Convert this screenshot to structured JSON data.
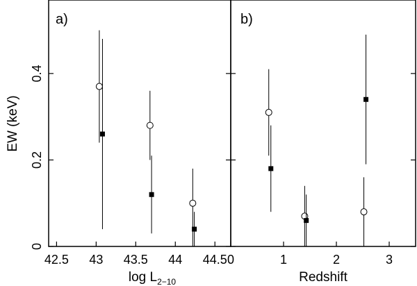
{
  "chart_data": [
    {
      "type": "scatter",
      "panel_label": "a)",
      "xlabel_main": "log L",
      "xlabel_sub": "2−10",
      "ylabel": "EW (keV)",
      "xlim": [
        42.4,
        44.7
      ],
      "ylim": [
        0,
        0.57
      ],
      "xticks": [
        42.5,
        43,
        43.5,
        44,
        44.5
      ],
      "xtick_labels": [
        "42.5",
        "43",
        "43.5",
        "44",
        "44.5"
      ],
      "yticks": [
        0,
        0.2,
        0.4
      ],
      "ytick_labels": [
        "0",
        "0.2",
        "0.4"
      ],
      "series": [
        {
          "marker": "open-circle",
          "points": [
            {
              "x": 43.04,
              "y": 0.37,
              "ylo": 0.24,
              "yhi": 0.5
            },
            {
              "x": 43.68,
              "y": 0.28,
              "ylo": 0.2,
              "yhi": 0.36
            },
            {
              "x": 44.22,
              "y": 0.1,
              "ylo": 0.0,
              "yhi": 0.18
            }
          ]
        },
        {
          "marker": "filled-square",
          "points": [
            {
              "x": 43.08,
              "y": 0.26,
              "ylo": 0.04,
              "yhi": 0.48
            },
            {
              "x": 43.7,
              "y": 0.12,
              "ylo": 0.03,
              "yhi": 0.21
            },
            {
              "x": 44.24,
              "y": 0.04,
              "ylo": 0.0,
              "yhi": 0.08
            }
          ]
        }
      ]
    },
    {
      "type": "scatter",
      "panel_label": "b)",
      "xlabel_main": "Redshift",
      "xlabel_sub": "",
      "ylabel": "",
      "xlim": [
        0,
        3.5
      ],
      "ylim": [
        0,
        0.57
      ],
      "xticks": [
        0,
        1,
        2,
        3
      ],
      "xtick_labels": [
        "0",
        "1",
        "2",
        "3"
      ],
      "yticks": [
        0,
        0.2,
        0.4
      ],
      "ytick_labels": [],
      "series": [
        {
          "marker": "open-circle",
          "points": [
            {
              "x": 0.72,
              "y": 0.31,
              "ylo": 0.21,
              "yhi": 0.41
            },
            {
              "x": 1.4,
              "y": 0.07,
              "ylo": 0.0,
              "yhi": 0.14
            },
            {
              "x": 2.52,
              "y": 0.08,
              "ylo": 0.0,
              "yhi": 0.16
            }
          ]
        },
        {
          "marker": "filled-square",
          "points": [
            {
              "x": 0.76,
              "y": 0.18,
              "ylo": 0.08,
              "yhi": 0.28
            },
            {
              "x": 1.43,
              "y": 0.06,
              "ylo": 0.0,
              "yhi": 0.12
            },
            {
              "x": 2.56,
              "y": 0.34,
              "ylo": 0.19,
              "yhi": 0.49
            }
          ]
        }
      ]
    }
  ]
}
